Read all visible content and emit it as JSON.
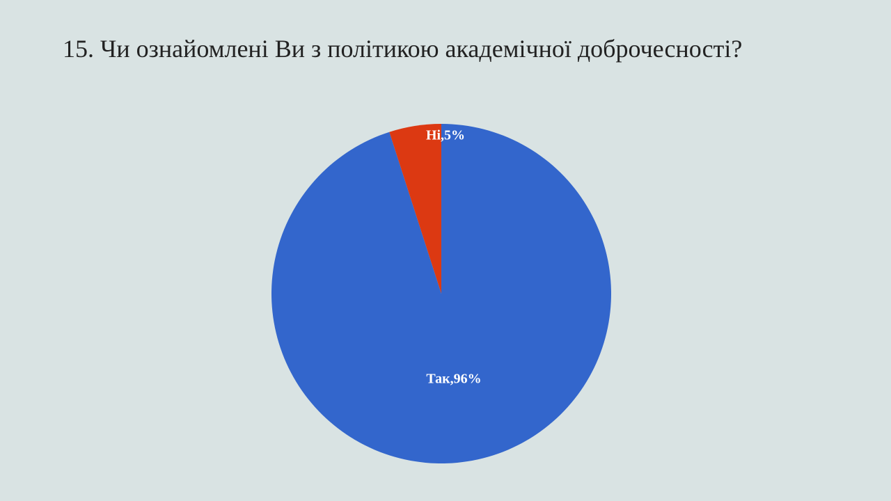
{
  "chart_data": {
    "type": "pie",
    "title": "15. Чи ознайомлені Ви  з політикою академічної доброчесності?",
    "categories": [
      "Так",
      "Ні"
    ],
    "values": [
      96,
      5
    ],
    "value_labels": [
      "Так,96%",
      "Ні,5%"
    ],
    "colors": [
      "#3366cc",
      "#dc3912"
    ]
  }
}
